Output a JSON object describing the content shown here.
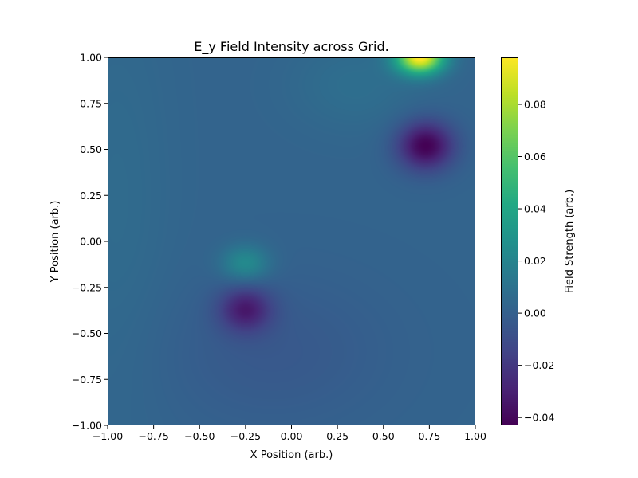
{
  "chart_data": {
    "type": "heatmap",
    "title": "E_y Field Intensity across Grid.",
    "xlabel": "X Position (arb.)",
    "ylabel": "Y Position (arb.)",
    "xlim": [
      -1.0,
      1.0
    ],
    "ylim": [
      -1.0,
      1.0
    ],
    "x_ticks": [
      "−1.00",
      "−0.75",
      "−0.50",
      "−0.25",
      "0.00",
      "0.25",
      "0.50",
      "0.75",
      "1.00"
    ],
    "y_ticks": [
      "1.00",
      "0.75",
      "0.50",
      "0.25",
      "0.00",
      "−0.25",
      "−0.50",
      "−0.75",
      "−1.00"
    ],
    "x_tick_values": [
      -1.0,
      -0.75,
      -0.5,
      -0.25,
      0.0,
      0.25,
      0.5,
      0.75,
      1.0
    ],
    "y_tick_values": [
      1.0,
      0.75,
      0.5,
      0.25,
      0.0,
      -0.25,
      -0.5,
      -0.75,
      -1.0
    ],
    "colormap": "viridis",
    "colorbar": {
      "label": "Field Strength (arb.)",
      "min": -0.043,
      "max": 0.098,
      "tick_values": [
        0.08,
        0.06,
        0.04,
        0.02,
        0.0,
        -0.02,
        -0.04
      ],
      "ticks": [
        "0.08",
        "0.06",
        "0.04",
        "0.02",
        "0.00",
        "−0.02",
        "−0.04"
      ]
    },
    "field_features": [
      {
        "x": 0.7,
        "y": 1.0,
        "value": 0.098,
        "kind": "positive peak"
      },
      {
        "x": 0.73,
        "y": 0.52,
        "value": -0.043,
        "kind": "negative trough"
      },
      {
        "x": -0.25,
        "y": -0.12,
        "value": 0.025,
        "kind": "positive peak"
      },
      {
        "x": -0.25,
        "y": -0.37,
        "value": -0.03,
        "kind": "negative trough"
      }
    ],
    "background_value": 0.002,
    "grid": false
  }
}
